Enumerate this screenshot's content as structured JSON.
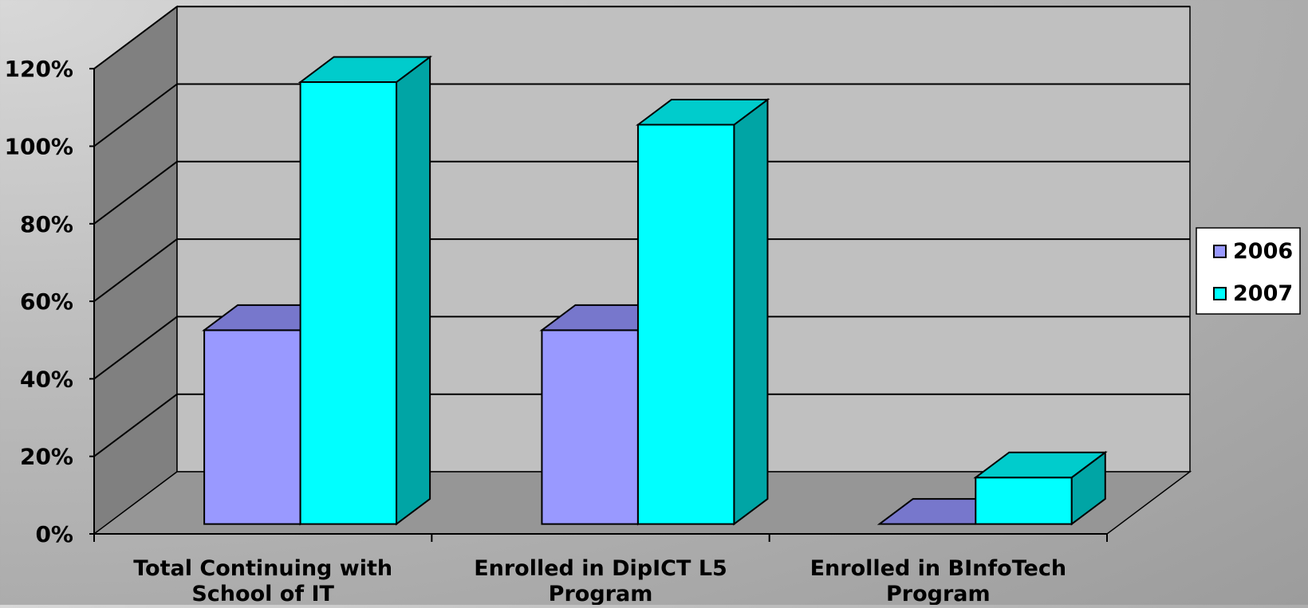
{
  "chart_data": {
    "type": "bar",
    "categories": [
      [
        "Total Continuing with",
        "School of IT"
      ],
      [
        "Enrolled in DipICT L5",
        "Program"
      ],
      [
        "Enrolled in BInfoTech",
        "Program"
      ]
    ],
    "series": [
      {
        "name": "2006",
        "values": [
          50,
          50,
          0
        ],
        "color": "#9999ff",
        "top_color": "#7777cc",
        "side_color": "#6a6ab8"
      },
      {
        "name": "2007",
        "values": [
          114,
          103,
          12
        ],
        "color": "#00ffff",
        "top_color": "#00cccc",
        "side_color": "#00a5a5"
      }
    ],
    "ylim": [
      0,
      120
    ],
    "y_ticks": [
      "0%",
      "20%",
      "40%",
      "60%",
      "80%",
      "100%",
      "120%"
    ],
    "grid": true,
    "legend": "right",
    "wall_color": "#c0c0c0",
    "side_wall_color": "#808080",
    "floor_color": "#969696"
  }
}
